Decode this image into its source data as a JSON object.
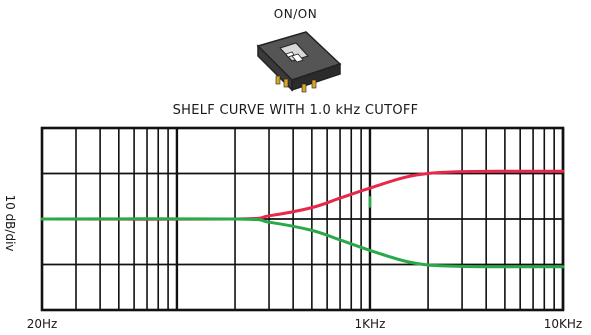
{
  "switch": {
    "label": "ON/ON"
  },
  "chart_data": {
    "type": "line",
    "title": "SHELF CURVE WITH 1.0 kHz CUTOFF",
    "ylabel": "10 dB/div",
    "x_scale": "log",
    "xlim": [
      20,
      10000
    ],
    "x_tick_labels": [
      "20Hz",
      "1KHz",
      "10KHz"
    ],
    "ylim": [
      -20,
      20
    ],
    "grid": true,
    "series": [
      {
        "color": "#e8274a",
        "x": [
          20,
          200,
          300,
          500,
          700,
          1000,
          1500,
          2000,
          3000,
          5000,
          10000
        ],
        "values": [
          0,
          0,
          0.7,
          2.5,
          4.6,
          6.8,
          9.1,
          10.0,
          10.4,
          10.5,
          10.5
        ]
      },
      {
        "color": "#2aa84a",
        "x": [
          20,
          200,
          300,
          500,
          700,
          1000,
          1500,
          2000,
          3000,
          5000,
          10000
        ],
        "values": [
          0,
          0,
          -0.7,
          -2.5,
          -4.6,
          -6.9,
          -9.2,
          -10.1,
          -10.4,
          -10.5,
          -10.5
        ]
      }
    ],
    "annotations": [
      {
        "color": "#2aa84a",
        "x": 1000,
        "y_from": 2.5,
        "y_to": 5.0
      }
    ]
  }
}
